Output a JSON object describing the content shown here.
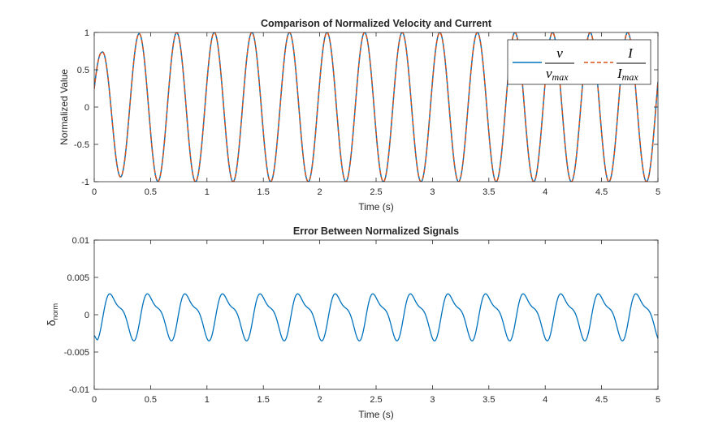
{
  "chart_data": [
    {
      "type": "line",
      "title": "Comparison of Normalized Velocity and Current",
      "xlabel": "Time (s)",
      "ylabel": "Normalized Value",
      "xlim": [
        0,
        5
      ],
      "ylim": [
        -1,
        1
      ],
      "xticks": [
        "0",
        "0.5",
        "1",
        "1.5",
        "2",
        "2.5",
        "3",
        "3.5",
        "4",
        "4.5",
        "5"
      ],
      "yticks": [
        "-1",
        "-0.5",
        "0",
        "0.5",
        "1"
      ],
      "legend": {
        "position": "top-right",
        "entries": [
          {
            "name": "v",
            "numerator": "v",
            "denominator": "v",
            "denominator_sub": "max",
            "style": "solid"
          },
          {
            "name": "I",
            "numerator": "I",
            "denominator": "I",
            "denominator_sub": "max",
            "style": "dashed"
          }
        ]
      },
      "series": [
        {
          "name": "v/v_max",
          "color": "#0072BD",
          "style": "solid",
          "frequency_hz": 3.0,
          "peak_first": 0.73,
          "peak_time_first": 0.065,
          "settled_amplitude": 1.0,
          "settle_time": 0.35
        },
        {
          "name": "I/I_max",
          "color": "#D95319",
          "style": "dashed",
          "frequency_hz": 3.0,
          "peak_first": 0.73,
          "peak_time_first": 0.065,
          "settled_amplitude": 1.0,
          "settle_time": 0.35
        }
      ]
    },
    {
      "type": "line",
      "title": "Error Between Normalized Signals",
      "xlabel": "Time (s)",
      "ylabel": "δ",
      "ylabel_sub": "norm",
      "xlim": [
        0,
        5
      ],
      "ylim": [
        -0.01,
        0.01
      ],
      "xticks": [
        "0",
        "0.5",
        "1",
        "1.5",
        "2",
        "2.5",
        "3",
        "3.5",
        "4",
        "4.5",
        "5"
      ],
      "yticks": [
        "-0.01",
        "-0.005",
        "0",
        "0.005",
        "0.01"
      ],
      "series": [
        {
          "name": "δ_norm",
          "color": "#0072BD",
          "style": "solid",
          "frequency_hz": 3.0,
          "amplitude": 0.0035,
          "start_value": -0.0028,
          "first_peak_time": 0.17,
          "first_trough_time": 0.28
        }
      ]
    }
  ]
}
